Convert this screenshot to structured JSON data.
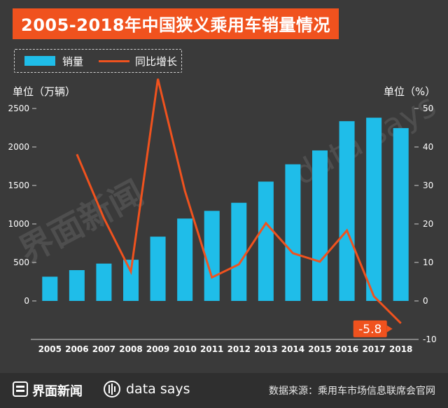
{
  "title": "2005-2018年中国狭义乘用车销量情况",
  "legend": {
    "bar": "销量",
    "line": "同比增长"
  },
  "left_axis_label": "单位（万辆）",
  "right_axis_label": "单位（%）",
  "colors": {
    "bar": "#1fbde9",
    "line": "#f0521e",
    "background": "#3a3a3a"
  },
  "chart_data": {
    "type": "bar+line",
    "categories": [
      "2005",
      "2006",
      "2007",
      "2008",
      "2009",
      "2010",
      "2011",
      "2012",
      "2013",
      "2014",
      "2015",
      "2016",
      "2017",
      "2018"
    ],
    "series": [
      {
        "name": "销量",
        "axis": "left",
        "type": "bar",
        "values": [
          315,
          400,
          485,
          535,
          835,
          1070,
          1170,
          1275,
          1550,
          1775,
          1955,
          2335,
          2380,
          2245
        ]
      },
      {
        "name": "同比增长",
        "axis": "right",
        "type": "line",
        "values": [
          null,
          38.1,
          21.5,
          7.6,
          57.7,
          28.6,
          6.1,
          9.5,
          20.2,
          12.4,
          10.2,
          18.3,
          1.2,
          -5.8
        ]
      }
    ],
    "y_left": {
      "ylim": [
        -500,
        2500
      ],
      "ticks": [
        "2500",
        "2000",
        "1500",
        "1000",
        "500",
        "0"
      ]
    },
    "y_right": {
      "ylim": [
        -10,
        50
      ],
      "ticks": [
        "50",
        "40",
        "30",
        "20",
        "10",
        "0",
        "-10"
      ]
    },
    "annotation": {
      "category": "2018",
      "text": "-5.8"
    }
  },
  "footer": {
    "brand1": "界面新闻",
    "brand2": "data says",
    "source": "数据来源：乘用车市场信息联席会官网"
  },
  "watermark": {
    "text1": "界面新闻",
    "text2": "data says"
  }
}
